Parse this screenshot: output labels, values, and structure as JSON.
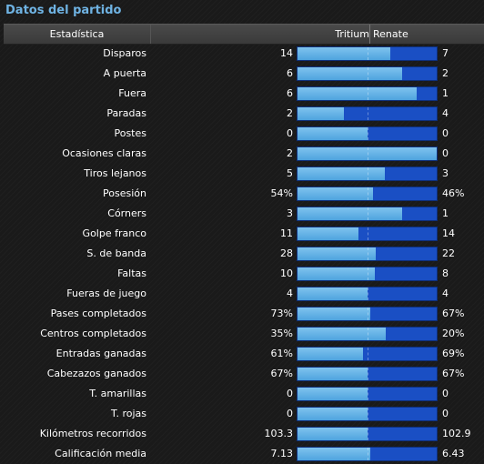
{
  "title": "Datos del partido",
  "header": {
    "stat": "Estadística",
    "home": "Tritium",
    "away": "Renate"
  },
  "colors": {
    "home_bar": "#6ab7e8",
    "away_bar": "#1a4fc4",
    "title": "#6fb3e3"
  },
  "stats": [
    {
      "label": "Disparos",
      "home": "14",
      "away": "7",
      "home_share": 0.667
    },
    {
      "label": "A puerta",
      "home": "6",
      "away": "2",
      "home_share": 0.75
    },
    {
      "label": "Fuera",
      "home": "6",
      "away": "1",
      "home_share": 0.857
    },
    {
      "label": "Paradas",
      "home": "2",
      "away": "4",
      "home_share": 0.333
    },
    {
      "label": "Postes",
      "home": "0",
      "away": "0",
      "home_share": 0.5
    },
    {
      "label": "Ocasiones claras",
      "home": "2",
      "away": "0",
      "home_share": 1.0
    },
    {
      "label": "Tiros lejanos",
      "home": "5",
      "away": "3",
      "home_share": 0.625
    },
    {
      "label": "Posesión",
      "home": "54%",
      "away": "46%",
      "home_share": 0.54
    },
    {
      "label": "Córners",
      "home": "3",
      "away": "1",
      "home_share": 0.75
    },
    {
      "label": "Golpe franco",
      "home": "11",
      "away": "14",
      "home_share": 0.44
    },
    {
      "label": "S. de banda",
      "home": "28",
      "away": "22",
      "home_share": 0.56
    },
    {
      "label": "Faltas",
      "home": "10",
      "away": "8",
      "home_share": 0.556
    },
    {
      "label": "Fueras de juego",
      "home": "4",
      "away": "4",
      "home_share": 0.5
    },
    {
      "label": "Pases completados",
      "home": "73%",
      "away": "67%",
      "home_share": 0.521
    },
    {
      "label": "Centros completados",
      "home": "35%",
      "away": "20%",
      "home_share": 0.636
    },
    {
      "label": "Entradas ganadas",
      "home": "61%",
      "away": "69%",
      "home_share": 0.469
    },
    {
      "label": "Cabezazos ganados",
      "home": "67%",
      "away": "67%",
      "home_share": 0.5
    },
    {
      "label": "T. amarillas",
      "home": "0",
      "away": "0",
      "home_share": 0.5
    },
    {
      "label": "T. rojas",
      "home": "0",
      "away": "0",
      "home_share": 0.5
    },
    {
      "label": "Kilómetros recorridos",
      "home": "103.3",
      "away": "102.9",
      "home_share": 0.501
    },
    {
      "label": "Calificación media",
      "home": "7.13",
      "away": "6.43",
      "home_share": 0.526
    }
  ]
}
